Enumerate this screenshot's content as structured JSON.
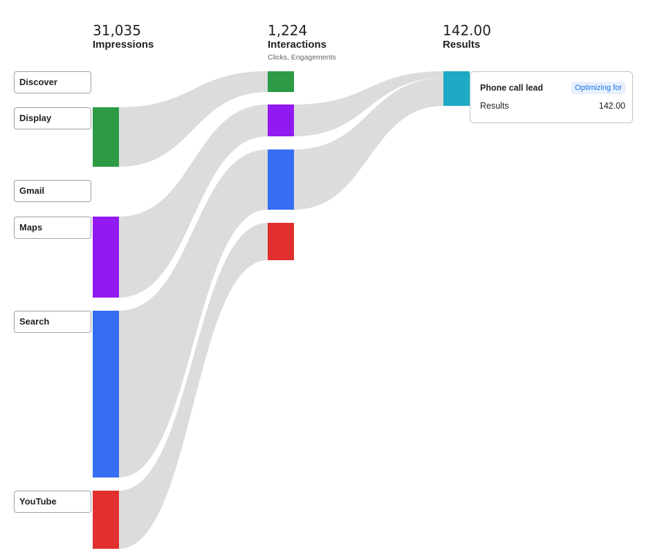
{
  "stages": {
    "impressions": {
      "value": "31,035",
      "label": "Impressions"
    },
    "interactions": {
      "value": "1,224",
      "label": "Interactions",
      "sublabel": "Clicks, Engagements"
    },
    "results": {
      "value": "142.00",
      "label": "Results"
    }
  },
  "channels": [
    {
      "name": "Discover",
      "color": "#34a853"
    },
    {
      "name": "Display",
      "color": "#34a853"
    },
    {
      "name": "Gmail",
      "color": "#34a853"
    },
    {
      "name": "Maps",
      "color": "#9334e6"
    },
    {
      "name": "Search",
      "color": "#4285f4"
    },
    {
      "name": "YouTube",
      "color": "#ea4335"
    }
  ],
  "colors": {
    "display": "#2d9b46",
    "maps": "#9119f2",
    "search": "#356df3",
    "youtube": "#e1302f",
    "results": "#1ea9c4",
    "flow": "#dcdcdc"
  },
  "tooltip": {
    "title": "Phone call lead",
    "badge": "Optimizing for",
    "metric_label": "Results",
    "metric_value": "142.00"
  }
}
